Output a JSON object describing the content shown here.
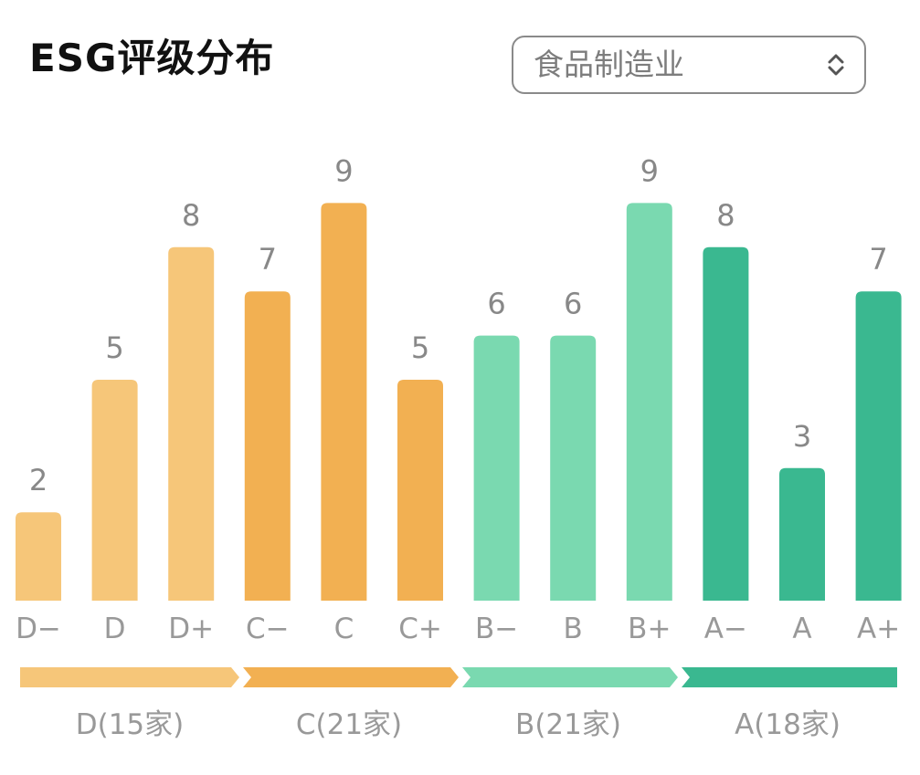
{
  "header": {
    "title": "ESG评级分布"
  },
  "filter": {
    "selected": "食品制造业",
    "icon": "chevron-up-down-icon"
  },
  "colors": {
    "D": "#f6c679",
    "C": "#f2b052",
    "B": "#7ad9b0",
    "A": "#3ab890",
    "label": "#999999",
    "value": "#888888"
  },
  "chart_data": {
    "type": "bar",
    "categories": [
      "D−",
      "D",
      "D+",
      "C−",
      "C",
      "C+",
      "B−",
      "B",
      "B+",
      "A−",
      "A",
      "A+"
    ],
    "values": [
      2,
      5,
      8,
      7,
      9,
      5,
      6,
      6,
      9,
      8,
      3,
      7
    ],
    "groups_of_bars": [
      "D",
      "D",
      "D",
      "C",
      "C",
      "C",
      "B",
      "B",
      "B",
      "A",
      "A",
      "A"
    ],
    "ylim": [
      0,
      9
    ],
    "grid": false,
    "groups": [
      {
        "key": "D",
        "label": "D(15家)"
      },
      {
        "key": "C",
        "label": "C(21家)"
      },
      {
        "key": "B",
        "label": "B(21家)"
      },
      {
        "key": "A",
        "label": "A(18家)"
      }
    ]
  }
}
